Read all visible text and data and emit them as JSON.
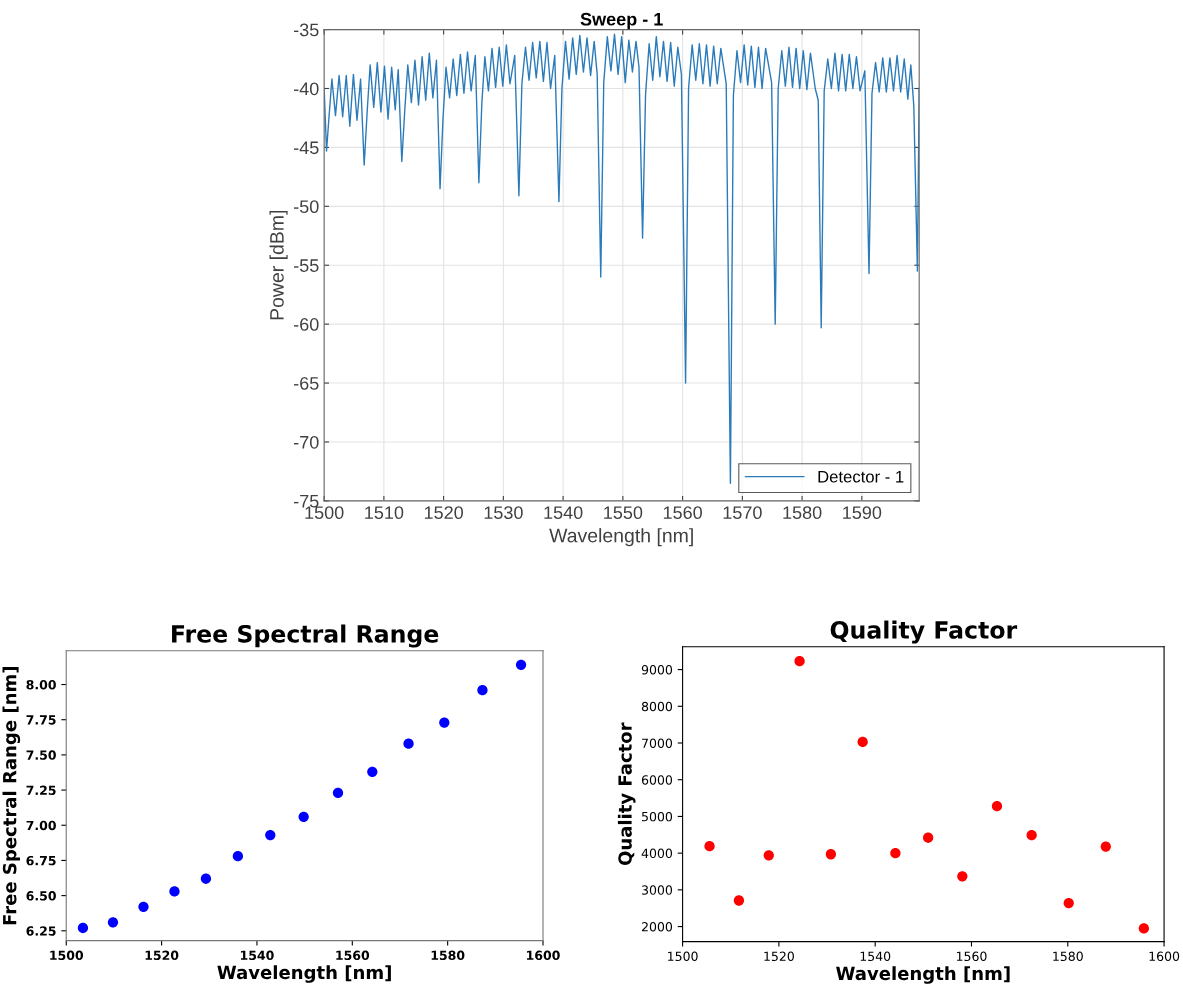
{
  "chart_data": [
    {
      "type": "line",
      "title": "Sweep - 1",
      "xlabel": "Wavelength [nm]",
      "ylabel": "Power [dBm]",
      "xlim": [
        1500,
        1599.6
      ],
      "ylim": [
        -75,
        -35
      ],
      "xticks": [
        1500,
        1510,
        1520,
        1530,
        1540,
        1550,
        1560,
        1570,
        1580,
        1590
      ],
      "yticks": [
        -75,
        -70,
        -65,
        -60,
        -55,
        -50,
        -45,
        -40,
        -35
      ],
      "grid": true,
      "legend": "bottom right",
      "series": [
        {
          "name": "Detector - 1",
          "color": "#2b7bba",
          "x": [
            1500.0,
            1500.4,
            1500.8,
            1501.3,
            1501.9,
            1502.5,
            1503.1,
            1503.7,
            1504.3,
            1504.9,
            1505.5,
            1506.1,
            1506.7,
            1507.2,
            1507.7,
            1508.3,
            1508.9,
            1509.5,
            1510.1,
            1510.7,
            1511.3,
            1511.9,
            1512.4,
            1513.0,
            1513.5,
            1514.0,
            1514.6,
            1515.2,
            1515.8,
            1516.4,
            1517.0,
            1517.6,
            1518.2,
            1518.8,
            1519.4,
            1519.9,
            1520.4,
            1521.0,
            1521.6,
            1522.2,
            1522.8,
            1523.4,
            1524.0,
            1524.6,
            1525.3,
            1525.9,
            1526.4,
            1526.9,
            1527.5,
            1528.1,
            1528.7,
            1529.3,
            1529.9,
            1530.5,
            1531.1,
            1531.9,
            1532.6,
            1533.1,
            1533.7,
            1534.3,
            1534.9,
            1535.5,
            1536.1,
            1536.7,
            1537.3,
            1537.9,
            1538.6,
            1539.3,
            1539.8,
            1540.4,
            1541.0,
            1541.6,
            1542.2,
            1542.8,
            1543.4,
            1544.0,
            1544.6,
            1545.2,
            1545.7,
            1546.3,
            1546.8,
            1547.4,
            1548.0,
            1548.6,
            1549.2,
            1549.8,
            1550.4,
            1551.0,
            1551.6,
            1552.2,
            1552.7,
            1553.3,
            1553.8,
            1554.4,
            1555.0,
            1555.6,
            1556.2,
            1556.8,
            1557.4,
            1558.0,
            1558.6,
            1559.2,
            1559.8,
            1560.5,
            1561.0,
            1561.6,
            1562.2,
            1562.8,
            1563.4,
            1564.0,
            1564.6,
            1565.2,
            1565.8,
            1566.4,
            1567.3,
            1568.0,
            1568.5,
            1569.1,
            1569.7,
            1570.3,
            1570.9,
            1571.5,
            1572.1,
            1572.7,
            1573.3,
            1573.9,
            1574.9,
            1575.5,
            1576.0,
            1576.6,
            1577.2,
            1577.8,
            1578.4,
            1579.0,
            1579.6,
            1580.2,
            1580.8,
            1581.4,
            1582.2,
            1582.7,
            1583.2,
            1583.7,
            1584.3,
            1584.9,
            1585.5,
            1586.1,
            1586.7,
            1587.3,
            1587.9,
            1588.5,
            1589.1,
            1589.7,
            1590.5,
            1591.2,
            1591.7,
            1592.3,
            1592.9,
            1593.5,
            1594.1,
            1594.7,
            1595.3,
            1595.9,
            1596.5,
            1597.1,
            1597.7,
            1598.2,
            1598.7,
            1599.3,
            1599.6
          ],
          "values": [
            -40.0,
            -45.3,
            -42.5,
            -39.2,
            -42.3,
            -38.9,
            -42.4,
            -38.9,
            -43.2,
            -38.8,
            -42.7,
            -39.2,
            -46.5,
            -42.0,
            -38.0,
            -41.6,
            -37.8,
            -42.0,
            -38.1,
            -42.6,
            -38.2,
            -41.8,
            -38.4,
            -46.2,
            -41.8,
            -38.0,
            -41.2,
            -37.6,
            -41.4,
            -37.3,
            -41.0,
            -37.0,
            -40.8,
            -37.6,
            -48.5,
            -42.5,
            -38.2,
            -40.8,
            -37.5,
            -40.6,
            -37.1,
            -40.4,
            -36.9,
            -40.2,
            -37.2,
            -48.0,
            -41.2,
            -37.3,
            -40.2,
            -36.6,
            -39.9,
            -36.5,
            -39.8,
            -36.3,
            -39.6,
            -37.2,
            -49.1,
            -39.6,
            -36.5,
            -39.3,
            -36.1,
            -39.1,
            -36.0,
            -39.4,
            -36.1,
            -40.0,
            -37.2,
            -49.6,
            -40.0,
            -36.0,
            -39.2,
            -35.7,
            -38.8,
            -35.5,
            -38.6,
            -35.7,
            -38.9,
            -36.0,
            -38.8,
            -56.0,
            -39.5,
            -35.6,
            -38.5,
            -35.4,
            -38.8,
            -35.6,
            -39.5,
            -35.9,
            -38.6,
            -36.0,
            -38.2,
            -52.7,
            -40.5,
            -36.2,
            -39.3,
            -35.6,
            -39.0,
            -36.0,
            -39.4,
            -36.1,
            -39.8,
            -36.5,
            -38.8,
            -65.0,
            -40.0,
            -36.3,
            -39.3,
            -36.2,
            -39.6,
            -36.3,
            -39.8,
            -36.4,
            -39.6,
            -36.6,
            -39.6,
            -73.5,
            -40.6,
            -36.8,
            -39.5,
            -36.3,
            -39.7,
            -36.4,
            -39.9,
            -36.5,
            -40.0,
            -36.6,
            -39.5,
            -60.0,
            -40.0,
            -36.8,
            -39.8,
            -36.5,
            -39.9,
            -36.6,
            -40.0,
            -36.8,
            -40.1,
            -37.0,
            -40.0,
            -41.0,
            -60.3,
            -40.2,
            -37.5,
            -40.0,
            -37.0,
            -40.2,
            -37.1,
            -40.2,
            -37.1,
            -40.0,
            -37.3,
            -40.2,
            -38.5,
            -55.7,
            -40.4,
            -37.8,
            -40.3,
            -37.4,
            -40.3,
            -37.4,
            -40.2,
            -37.2,
            -40.3,
            -37.5,
            -40.9,
            -38.0,
            -41.5,
            -55.5,
            -40.0
          ]
        }
      ]
    },
    {
      "type": "scatter",
      "title": "Free Spectral Range",
      "xlabel": "Wavelength [nm]",
      "ylabel": "Free Spectral Range [nm]",
      "xlim": [
        1500,
        1600
      ],
      "ylim": [
        6.18,
        8.24
      ],
      "xticks": [
        1500,
        1520,
        1540,
        1560,
        1580,
        1600
      ],
      "yticks": [
        {
          "value": 6.25,
          "label": "6.25"
        },
        {
          "value": 6.5,
          "label": "6.50"
        },
        {
          "value": 6.75,
          "label": "6.75"
        },
        {
          "value": 7.0,
          "label": "7.00"
        },
        {
          "value": 7.25,
          "label": "7.25"
        },
        {
          "value": 7.5,
          "label": "7.50"
        },
        {
          "value": 7.75,
          "label": "7.75"
        },
        {
          "value": 8.0,
          "label": "8.00"
        }
      ],
      "marker": "circle",
      "series": [
        {
          "color": "#0000ff",
          "x": [
            1503.5,
            1509.8,
            1516.2,
            1522.7,
            1529.3,
            1536.0,
            1542.8,
            1549.8,
            1557.0,
            1564.2,
            1571.8,
            1579.3,
            1587.3,
            1595.4
          ],
          "values": [
            6.27,
            6.31,
            6.42,
            6.53,
            6.62,
            6.78,
            6.93,
            7.06,
            7.23,
            7.38,
            7.58,
            7.73,
            7.96,
            8.14
          ]
        }
      ]
    },
    {
      "type": "scatter",
      "title": "Quality Factor",
      "xlabel": "Wavelength [nm]",
      "ylabel": "Quality Factor",
      "xlim": [
        1500,
        1600
      ],
      "ylim": [
        1590,
        9620
      ],
      "xticks": [
        1500,
        1520,
        1540,
        1560,
        1580,
        1600
      ],
      "yticks": [
        2000,
        3000,
        4000,
        5000,
        6000,
        7000,
        8000,
        9000
      ],
      "marker": "circle",
      "series": [
        {
          "color": "#ff0000",
          "x": [
            1505.6,
            1511.7,
            1517.9,
            1524.3,
            1530.8,
            1537.4,
            1544.2,
            1551.0,
            1558.1,
            1565.3,
            1572.5,
            1580.2,
            1587.9,
            1595.8
          ],
          "values": [
            4190,
            2710,
            3940,
            9230,
            3970,
            7030,
            4000,
            4420,
            3370,
            5280,
            4490,
            2640,
            4180,
            1950
          ]
        }
      ]
    }
  ]
}
